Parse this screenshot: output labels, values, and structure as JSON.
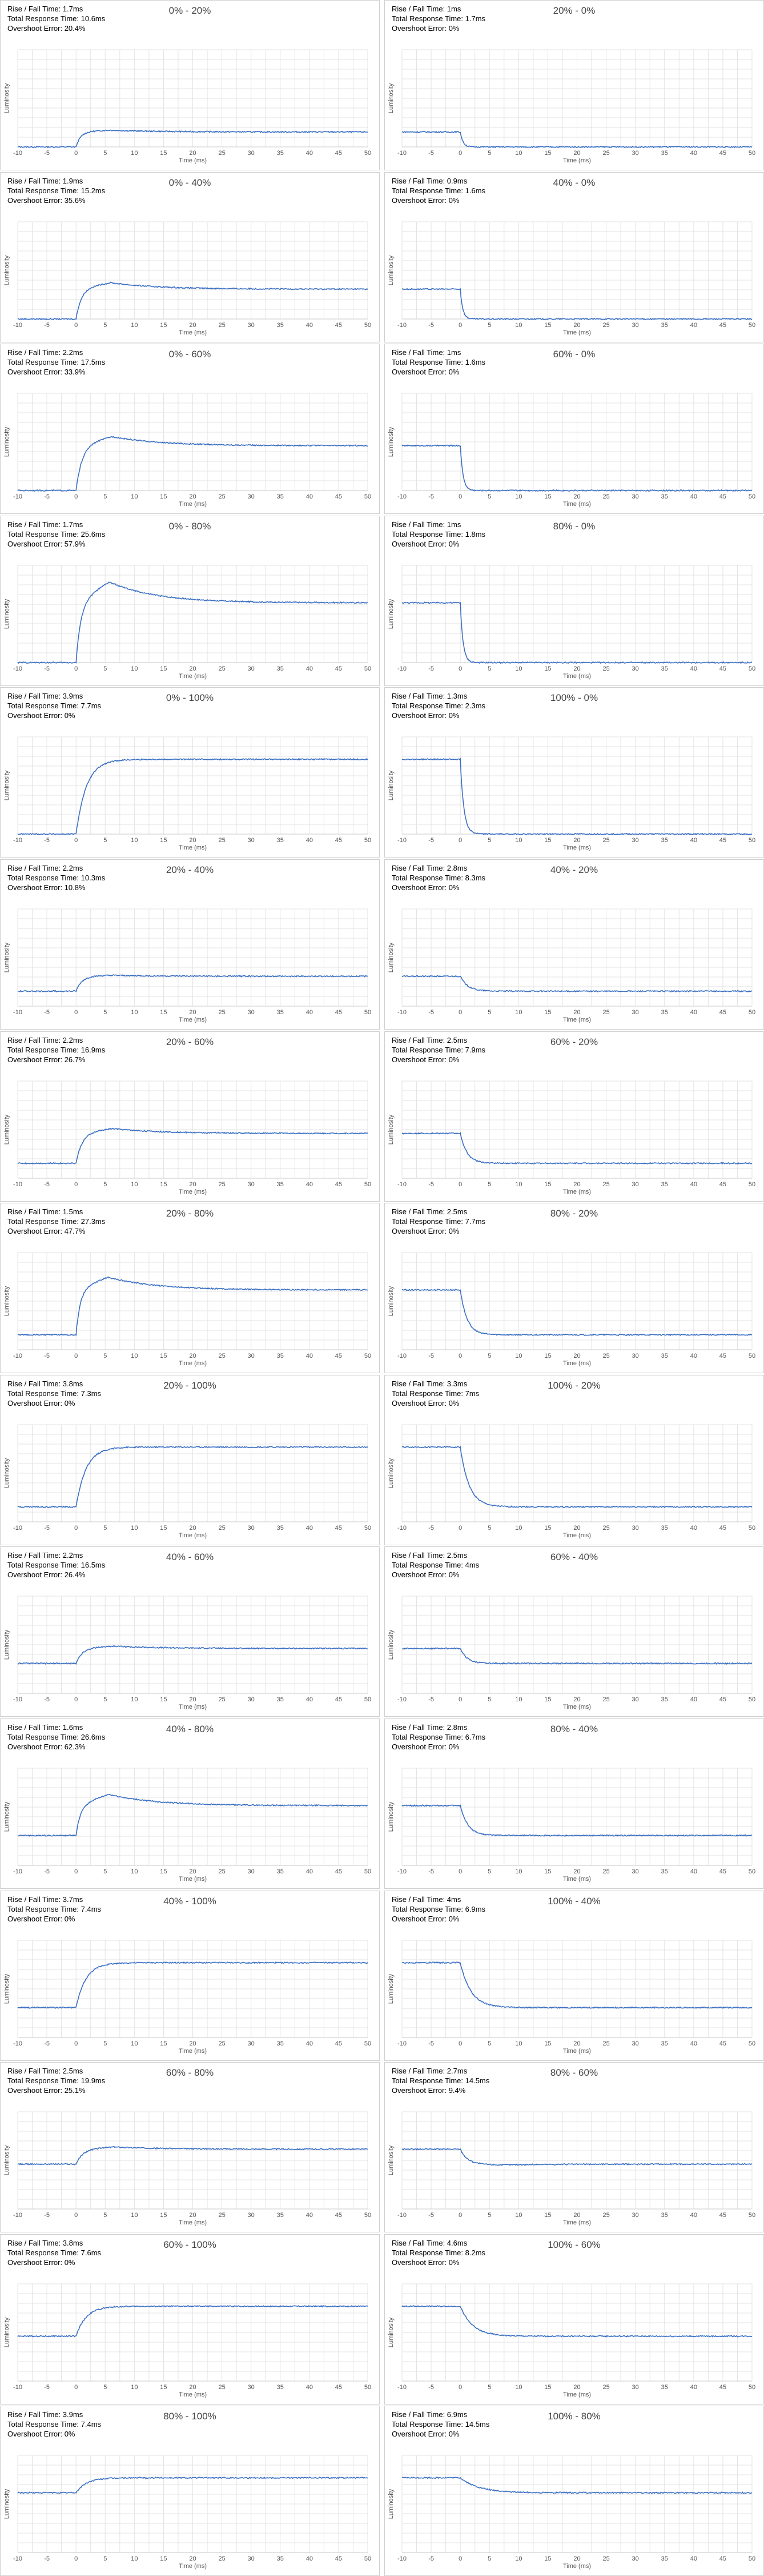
{
  "colors": {
    "line": "#3a6fc4",
    "grid": "#e3e3e3",
    "frame": "#c8c8c8"
  },
  "axis": {
    "xlabel": "Time (ms)",
    "ylabel": "Luminosity",
    "xticks": [
      "-10",
      "-5",
      "0",
      "5",
      "10",
      "15",
      "20",
      "25",
      "30",
      "35",
      "40",
      "45",
      "50"
    ]
  },
  "labels": {
    "rise_fall": "Rise / Fall Time: ",
    "total": "Total Response Time: ",
    "overshoot": "Overshoot Error: "
  },
  "chart_data": [
    {
      "type": "line",
      "title": "0% - 20%",
      "rise_fall": "1.7ms",
      "total": "10.6ms",
      "overshoot": "20.4%",
      "from": 0,
      "to": 20,
      "direction": "rise",
      "xlim": [
        -10,
        50
      ],
      "xlabel": "Time (ms)",
      "ylabel": "Luminosity"
    },
    {
      "type": "line",
      "title": "20% - 0%",
      "rise_fall": "1ms",
      "total": "1.7ms",
      "overshoot": "0%",
      "from": 20,
      "to": 0,
      "direction": "fall",
      "xlim": [
        -10,
        50
      ],
      "xlabel": "Time (ms)",
      "ylabel": "Luminosity"
    },
    {
      "type": "line",
      "title": "0% - 40%",
      "rise_fall": "1.9ms",
      "total": "15.2ms",
      "overshoot": "35.6%",
      "from": 0,
      "to": 40,
      "direction": "rise",
      "xlim": [
        -10,
        50
      ],
      "xlabel": "Time (ms)",
      "ylabel": "Luminosity"
    },
    {
      "type": "line",
      "title": "40% - 0%",
      "rise_fall": "0.9ms",
      "total": "1.6ms",
      "overshoot": "0%",
      "from": 40,
      "to": 0,
      "direction": "fall",
      "xlim": [
        -10,
        50
      ],
      "xlabel": "Time (ms)",
      "ylabel": "Luminosity"
    },
    {
      "type": "line",
      "title": "0% - 60%",
      "rise_fall": "2.2ms",
      "total": "17.5ms",
      "overshoot": "33.9%",
      "from": 0,
      "to": 60,
      "direction": "rise",
      "xlim": [
        -10,
        50
      ],
      "xlabel": "Time (ms)",
      "ylabel": "Luminosity"
    },
    {
      "type": "line",
      "title": "60% - 0%",
      "rise_fall": "1ms",
      "total": "1.6ms",
      "overshoot": "0%",
      "from": 60,
      "to": 0,
      "direction": "fall",
      "xlim": [
        -10,
        50
      ],
      "xlabel": "Time (ms)",
      "ylabel": "Luminosity"
    },
    {
      "type": "line",
      "title": "0% - 80%",
      "rise_fall": "1.7ms",
      "total": "25.6ms",
      "overshoot": "57.9%",
      "from": 0,
      "to": 80,
      "direction": "rise",
      "xlim": [
        -10,
        50
      ],
      "xlabel": "Time (ms)",
      "ylabel": "Luminosity"
    },
    {
      "type": "line",
      "title": "80% - 0%",
      "rise_fall": "1ms",
      "total": "1.8ms",
      "overshoot": "0%",
      "from": 80,
      "to": 0,
      "direction": "fall",
      "xlim": [
        -10,
        50
      ],
      "xlabel": "Time (ms)",
      "ylabel": "Luminosity"
    },
    {
      "type": "line",
      "title": "0% - 100%",
      "rise_fall": "3.9ms",
      "total": "7.7ms",
      "overshoot": "0%",
      "from": 0,
      "to": 100,
      "direction": "rise",
      "xlim": [
        -10,
        50
      ],
      "xlabel": "Time (ms)",
      "ylabel": "Luminosity"
    },
    {
      "type": "line",
      "title": "100% - 0%",
      "rise_fall": "1.3ms",
      "total": "2.3ms",
      "overshoot": "0%",
      "from": 100,
      "to": 0,
      "direction": "fall",
      "xlim": [
        -10,
        50
      ],
      "xlabel": "Time (ms)",
      "ylabel": "Luminosity"
    },
    {
      "type": "line",
      "title": "20% - 40%",
      "rise_fall": "2.2ms",
      "total": "10.3ms",
      "overshoot": "10.8%",
      "from": 20,
      "to": 40,
      "direction": "rise",
      "xlim": [
        -10,
        50
      ],
      "xlabel": "Time (ms)",
      "ylabel": "Luminosity"
    },
    {
      "type": "line",
      "title": "40% - 20%",
      "rise_fall": "2.8ms",
      "total": "8.3ms",
      "overshoot": "0%",
      "from": 40,
      "to": 20,
      "direction": "fall",
      "xlim": [
        -10,
        50
      ],
      "xlabel": "Time (ms)",
      "ylabel": "Luminosity"
    },
    {
      "type": "line",
      "title": "20% - 60%",
      "rise_fall": "2.2ms",
      "total": "16.9ms",
      "overshoot": "26.7%",
      "from": 20,
      "to": 60,
      "direction": "rise",
      "xlim": [
        -10,
        50
      ],
      "xlabel": "Time (ms)",
      "ylabel": "Luminosity"
    },
    {
      "type": "line",
      "title": "60% - 20%",
      "rise_fall": "2.5ms",
      "total": "7.9ms",
      "overshoot": "0%",
      "from": 60,
      "to": 20,
      "direction": "fall",
      "xlim": [
        -10,
        50
      ],
      "xlabel": "Time (ms)",
      "ylabel": "Luminosity"
    },
    {
      "type": "line",
      "title": "20% - 80%",
      "rise_fall": "1.5ms",
      "total": "27.3ms",
      "overshoot": "47.7%",
      "from": 20,
      "to": 80,
      "direction": "rise",
      "xlim": [
        -10,
        50
      ],
      "xlabel": "Time (ms)",
      "ylabel": "Luminosity"
    },
    {
      "type": "line",
      "title": "80% - 20%",
      "rise_fall": "2.5ms",
      "total": "7.7ms",
      "overshoot": "0%",
      "from": 80,
      "to": 20,
      "direction": "fall",
      "xlim": [
        -10,
        50
      ],
      "xlabel": "Time (ms)",
      "ylabel": "Luminosity"
    },
    {
      "type": "line",
      "title": "20% - 100%",
      "rise_fall": "3.8ms",
      "total": "7.3ms",
      "overshoot": "0%",
      "from": 20,
      "to": 100,
      "direction": "rise",
      "xlim": [
        -10,
        50
      ],
      "xlabel": "Time (ms)",
      "ylabel": "Luminosity"
    },
    {
      "type": "line",
      "title": "100% - 20%",
      "rise_fall": "3.3ms",
      "total": "7ms",
      "overshoot": "0%",
      "from": 100,
      "to": 20,
      "direction": "fall",
      "xlim": [
        -10,
        50
      ],
      "xlabel": "Time (ms)",
      "ylabel": "Luminosity"
    },
    {
      "type": "line",
      "title": "40% - 60%",
      "rise_fall": "2.2ms",
      "total": "16.5ms",
      "overshoot": "26.4%",
      "from": 40,
      "to": 60,
      "direction": "rise",
      "xlim": [
        -10,
        50
      ],
      "xlabel": "Time (ms)",
      "ylabel": "Luminosity"
    },
    {
      "type": "line",
      "title": "60% - 40%",
      "rise_fall": "2.5ms",
      "total": "4ms",
      "overshoot": "0%",
      "from": 60,
      "to": 40,
      "direction": "fall",
      "xlim": [
        -10,
        50
      ],
      "xlabel": "Time (ms)",
      "ylabel": "Luminosity"
    },
    {
      "type": "line",
      "title": "40% - 80%",
      "rise_fall": "1.6ms",
      "total": "26.6ms",
      "overshoot": "62.3%",
      "from": 40,
      "to": 80,
      "direction": "rise",
      "xlim": [
        -10,
        50
      ],
      "xlabel": "Time (ms)",
      "ylabel": "Luminosity"
    },
    {
      "type": "line",
      "title": "80% - 40%",
      "rise_fall": "2.8ms",
      "total": "6.7ms",
      "overshoot": "0%",
      "from": 80,
      "to": 40,
      "direction": "fall",
      "xlim": [
        -10,
        50
      ],
      "xlabel": "Time (ms)",
      "ylabel": "Luminosity"
    },
    {
      "type": "line",
      "title": "40% - 100%",
      "rise_fall": "3.7ms",
      "total": "7.4ms",
      "overshoot": "0%",
      "from": 40,
      "to": 100,
      "direction": "rise",
      "xlim": [
        -10,
        50
      ],
      "xlabel": "Time (ms)",
      "ylabel": "Luminosity"
    },
    {
      "type": "line",
      "title": "100% - 40%",
      "rise_fall": "4ms",
      "total": "6.9ms",
      "overshoot": "0%",
      "from": 100,
      "to": 40,
      "direction": "fall",
      "xlim": [
        -10,
        50
      ],
      "xlabel": "Time (ms)",
      "ylabel": "Luminosity"
    },
    {
      "type": "line",
      "title": "60% - 80%",
      "rise_fall": "2.5ms",
      "total": "19.9ms",
      "overshoot": "25.1%",
      "from": 60,
      "to": 80,
      "direction": "rise",
      "xlim": [
        -10,
        50
      ],
      "xlabel": "Time (ms)",
      "ylabel": "Luminosity"
    },
    {
      "type": "line",
      "title": "80% - 60%",
      "rise_fall": "2.7ms",
      "total": "14.5ms",
      "overshoot": "9.4%",
      "from": 80,
      "to": 60,
      "direction": "fall",
      "xlim": [
        -10,
        50
      ],
      "xlabel": "Time (ms)",
      "ylabel": "Luminosity"
    },
    {
      "type": "line",
      "title": "60% - 100%",
      "rise_fall": "3.8ms",
      "total": "7.6ms",
      "overshoot": "0%",
      "from": 60,
      "to": 100,
      "direction": "rise",
      "xlim": [
        -10,
        50
      ],
      "xlabel": "Time (ms)",
      "ylabel": "Luminosity"
    },
    {
      "type": "line",
      "title": "100% - 60%",
      "rise_fall": "4.6ms",
      "total": "8.2ms",
      "overshoot": "0%",
      "from": 100,
      "to": 60,
      "direction": "fall",
      "xlim": [
        -10,
        50
      ],
      "xlabel": "Time (ms)",
      "ylabel": "Luminosity"
    },
    {
      "type": "line",
      "title": "80% - 100%",
      "rise_fall": "3.9ms",
      "total": "7.4ms",
      "overshoot": "0%",
      "from": 80,
      "to": 100,
      "direction": "rise",
      "xlim": [
        -10,
        50
      ],
      "xlabel": "Time (ms)",
      "ylabel": "Luminosity"
    },
    {
      "type": "line",
      "title": "100% - 80%",
      "rise_fall": "6.9ms",
      "total": "14.5ms",
      "overshoot": "0%",
      "from": 100,
      "to": 80,
      "direction": "fall",
      "xlim": [
        -10,
        50
      ],
      "xlabel": "Time (ms)",
      "ylabel": "Luminosity"
    }
  ]
}
